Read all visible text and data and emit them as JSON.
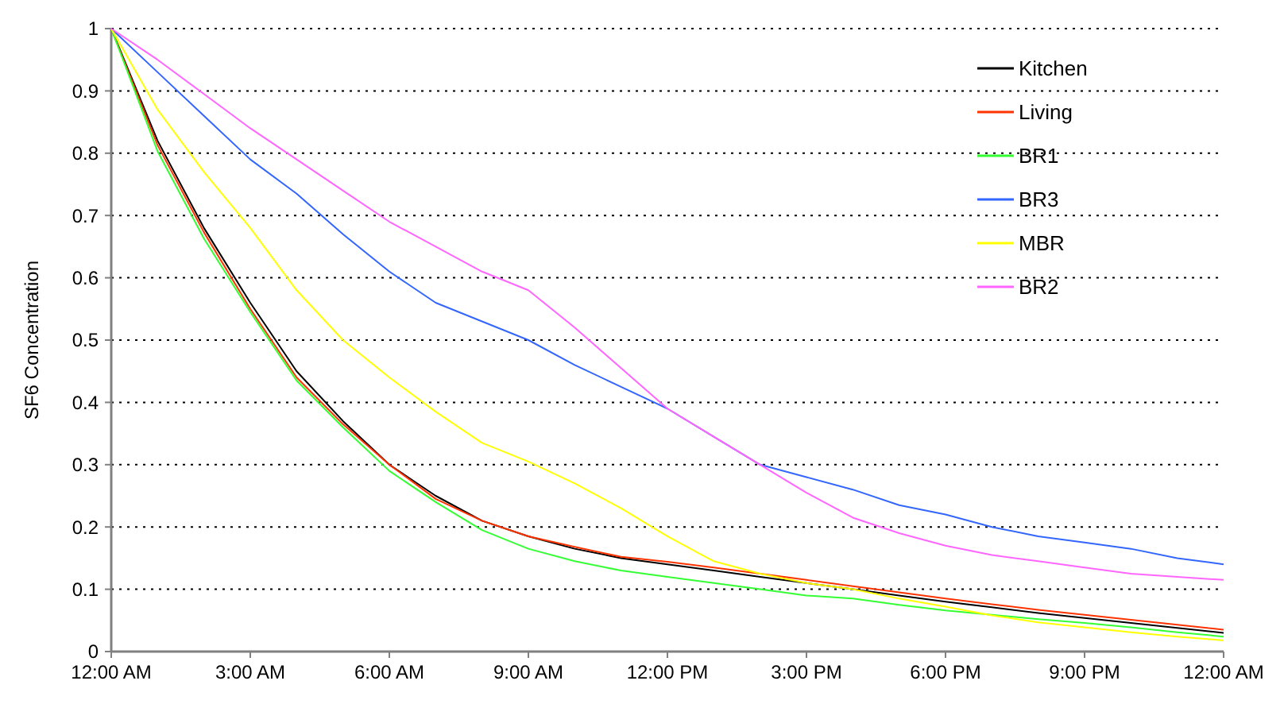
{
  "chart_data": {
    "type": "line",
    "ylabel": "SF6 Concentration",
    "x": [
      0,
      1,
      2,
      3,
      4,
      5,
      6,
      7,
      8,
      9,
      10,
      11,
      12,
      13,
      14,
      15,
      16,
      17,
      18,
      19,
      20,
      21,
      22,
      23,
      24
    ],
    "xlim": [
      0,
      24
    ],
    "xticks": [
      {
        "value": 0,
        "label": "12:00 AM"
      },
      {
        "value": 3,
        "label": "3:00 AM"
      },
      {
        "value": 6,
        "label": "6:00 AM"
      },
      {
        "value": 9,
        "label": "9:00 AM"
      },
      {
        "value": 12,
        "label": "12:00 PM"
      },
      {
        "value": 15,
        "label": "3:00 PM"
      },
      {
        "value": 18,
        "label": "6:00 PM"
      },
      {
        "value": 21,
        "label": "9:00 PM"
      },
      {
        "value": 24,
        "label": "12:00 AM"
      }
    ],
    "ylim": [
      0,
      1
    ],
    "yticks": [
      0,
      0.1,
      0.2,
      0.3,
      0.4,
      0.5,
      0.6,
      0.7,
      0.8,
      0.9,
      1
    ],
    "grid": "y",
    "legend": "top right",
    "marker": "none",
    "line_style": "solid",
    "series": [
      {
        "name": "Kitchen",
        "color": "#000000",
        "values": [
          1,
          0.82,
          0.68,
          0.56,
          0.45,
          0.37,
          0.3,
          0.25,
          0.21,
          0.185,
          0.165,
          0.15,
          0.14,
          0.13,
          0.12,
          0.11,
          0.1,
          0.09,
          0.08,
          0.071,
          0.062,
          0.054,
          0.046,
          0.038,
          0.03
        ]
      },
      {
        "name": "Living",
        "color": "#ff3300",
        "values": [
          1,
          0.813,
          0.673,
          0.55,
          0.44,
          0.365,
          0.3,
          0.245,
          0.21,
          0.185,
          0.168,
          0.152,
          0.144,
          0.135,
          0.125,
          0.115,
          0.105,
          0.095,
          0.085,
          0.076,
          0.067,
          0.059,
          0.051,
          0.043,
          0.035
        ]
      },
      {
        "name": "BR1",
        "color": "#33ff33",
        "values": [
          1,
          0.803,
          0.663,
          0.545,
          0.435,
          0.36,
          0.29,
          0.24,
          0.195,
          0.165,
          0.145,
          0.13,
          0.12,
          0.11,
          0.1,
          0.09,
          0.085,
          0.075,
          0.066,
          0.059,
          0.052,
          0.046,
          0.039,
          0.031,
          0.024
        ]
      },
      {
        "name": "BR3",
        "color": "#3366ff",
        "values": [
          1,
          0.93,
          0.86,
          0.79,
          0.735,
          0.67,
          0.61,
          0.56,
          0.53,
          0.5,
          0.46,
          0.425,
          0.39,
          0.345,
          0.3,
          0.28,
          0.26,
          0.235,
          0.22,
          0.2,
          0.185,
          0.175,
          0.165,
          0.15,
          0.14
        ]
      },
      {
        "name": "MBR",
        "color": "#ffff00",
        "values": [
          1,
          0.87,
          0.77,
          0.68,
          0.58,
          0.5,
          0.44,
          0.385,
          0.335,
          0.305,
          0.27,
          0.23,
          0.185,
          0.145,
          0.125,
          0.11,
          0.1,
          0.085,
          0.072,
          0.058,
          0.047,
          0.039,
          0.031,
          0.024,
          0.018
        ]
      },
      {
        "name": "BR2",
        "color": "#ff66ff",
        "values": [
          1,
          0.95,
          0.895,
          0.84,
          0.79,
          0.74,
          0.69,
          0.65,
          0.61,
          0.58,
          0.52,
          0.455,
          0.39,
          0.345,
          0.3,
          0.255,
          0.215,
          0.19,
          0.17,
          0.155,
          0.145,
          0.135,
          0.125,
          0.12,
          0.115
        ]
      }
    ]
  }
}
